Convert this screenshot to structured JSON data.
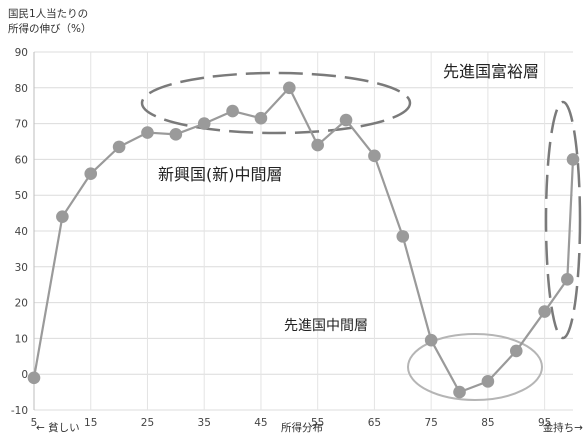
{
  "chart_data": {
    "type": "line",
    "ylabel_lines": [
      "国民1人当たりの",
      "所得の伸び（%）"
    ],
    "xlabel": "所得分布",
    "bottom_left_label": "← 貧しい",
    "bottom_right_label": "金持ち→",
    "x_ticks": [
      5,
      15,
      25,
      35,
      45,
      55,
      65,
      75,
      85,
      95
    ],
    "y_ticks": [
      -10,
      0,
      10,
      20,
      30,
      40,
      50,
      60,
      70,
      80,
      90
    ],
    "ylim": [
      -10,
      90
    ],
    "xlim": [
      5,
      100
    ],
    "grid": true,
    "series_color": "#9a9a9a",
    "series": [
      {
        "x": [
          5,
          10,
          15,
          20,
          25,
          30,
          35,
          40,
          45,
          50,
          55,
          60,
          65,
          70,
          75,
          80,
          85,
          90,
          95,
          99,
          100
        ],
        "y": [
          -1,
          44,
          56,
          63.5,
          67.5,
          67,
          70,
          73.5,
          71.5,
          80,
          64,
          71,
          61,
          38.5,
          9.5,
          -5,
          -2,
          6.5,
          17.5,
          26.5,
          60
        ]
      }
    ],
    "annotations": [
      {
        "label": "新興国(新)中間層",
        "ellipse_color": "#7a7a7a",
        "dashed": true
      },
      {
        "label": "先進国富裕層",
        "ellipse_color": "#7a7a7a",
        "dashed": true
      },
      {
        "label": "先進国中間層",
        "ellipse_color": "#b5b5b5",
        "dashed": false
      }
    ]
  }
}
